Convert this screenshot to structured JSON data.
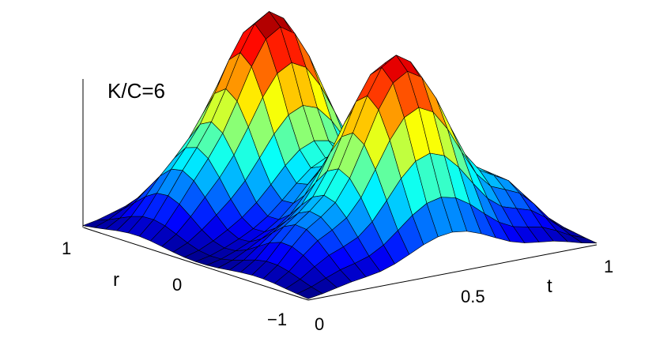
{
  "chart_data": {
    "type": "surface",
    "annotation": "K/C=6",
    "xlabel": "t",
    "ylabel": "r",
    "zlabel": "",
    "xlim": [
      0,
      1
    ],
    "ylim": [
      -1,
      1
    ],
    "zlim": [
      0,
      1
    ],
    "x_ticks": [
      "0",
      "0.5",
      "1"
    ],
    "y_ticks": [
      "-1",
      "0",
      "1"
    ],
    "grid": {
      "x_cells": 20,
      "y_cells": 20
    },
    "colormap": "jet",
    "surface_description": "two gaussian ridges along r, peaks near t=0.45 (back ridge, r=+0.5) and t=0.5 (front ridge, r=-0.5), values approaching 0 at t=0 and t=1",
    "peaks": [
      {
        "t": 0.45,
        "r": 0.5,
        "value": 1.0
      },
      {
        "t": 0.5,
        "r": -0.5,
        "value": 0.95
      }
    ],
    "shoulders": [
      {
        "t": 0.15,
        "value": 0.15
      },
      {
        "t": 0.85,
        "value": 0.2
      }
    ]
  }
}
